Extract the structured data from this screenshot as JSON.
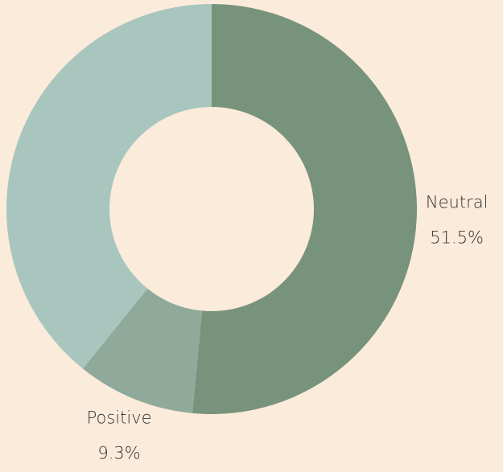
{
  "chart_data": {
    "type": "donut",
    "categories": [
      "Neutral",
      "Positive",
      null
    ],
    "values": [
      51.5,
      9.3,
      39.2
    ],
    "value_labels": [
      "51.5%",
      "9.3%",
      null
    ],
    "colors": [
      "#78937b",
      "#8fa99a",
      "#a8c6bd"
    ]
  }
}
